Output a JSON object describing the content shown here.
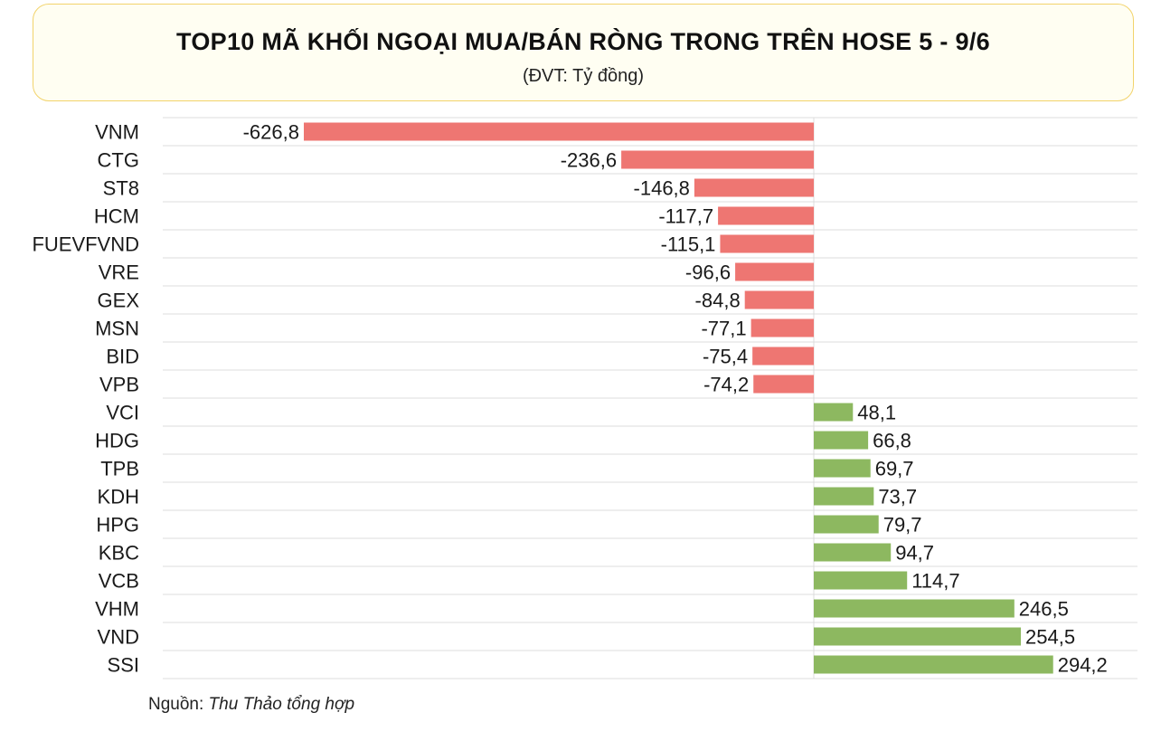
{
  "header": {
    "title": "TOP10 MÃ KHỐI NGOẠI MUA/BÁN RÒNG TRONG TRÊN HOSE 5 - 9/6",
    "subtitle": "(ĐVT: Tỷ đồng)"
  },
  "footer": {
    "source_label": "Nguồn: ",
    "source_author": "Thu Thảo tổng hợp"
  },
  "colors": {
    "negative": "#ee7672",
    "positive": "#8db860",
    "grid": "#dcdcdc",
    "title_border": "#f2d36b"
  },
  "chart_data": {
    "type": "bar",
    "orientation": "horizontal",
    "title": "TOP10 MÃ KHỐI NGOẠI MUA/BÁN RÒNG TRONG TRÊN HOSE 5 - 9/6",
    "xlabel": "",
    "ylabel": "",
    "unit": "Tỷ đồng",
    "xlim": [
      -700,
      320
    ],
    "grid": true,
    "legend": "none",
    "categories": [
      "VNM",
      "CTG",
      "ST8",
      "HCM",
      "FUEVFVND",
      "VRE",
      "GEX",
      "MSN",
      "BID",
      "VPB",
      "VCI",
      "HDG",
      "TPB",
      "KDH",
      "HPG",
      "KBC",
      "VCB",
      "VHM",
      "VND",
      "SSI"
    ],
    "values": [
      -626.8,
      -236.6,
      -146.8,
      -117.7,
      -115.1,
      -96.6,
      -84.8,
      -77.1,
      -75.4,
      -74.2,
      48.1,
      66.8,
      69.7,
      73.7,
      79.7,
      94.7,
      114.7,
      246.5,
      254.5,
      294.2
    ],
    "labels": [
      "-626,8",
      "-236,6",
      "-146,8",
      "-117,7",
      "-115,1",
      "-96,6",
      "-84,8",
      "-77,1",
      "-75,4",
      "-74,2",
      "48,1",
      "66,8",
      "69,7",
      "73,7",
      "79,7",
      "94,7",
      "114,7",
      "246,5",
      "254,5",
      "294,2"
    ]
  }
}
